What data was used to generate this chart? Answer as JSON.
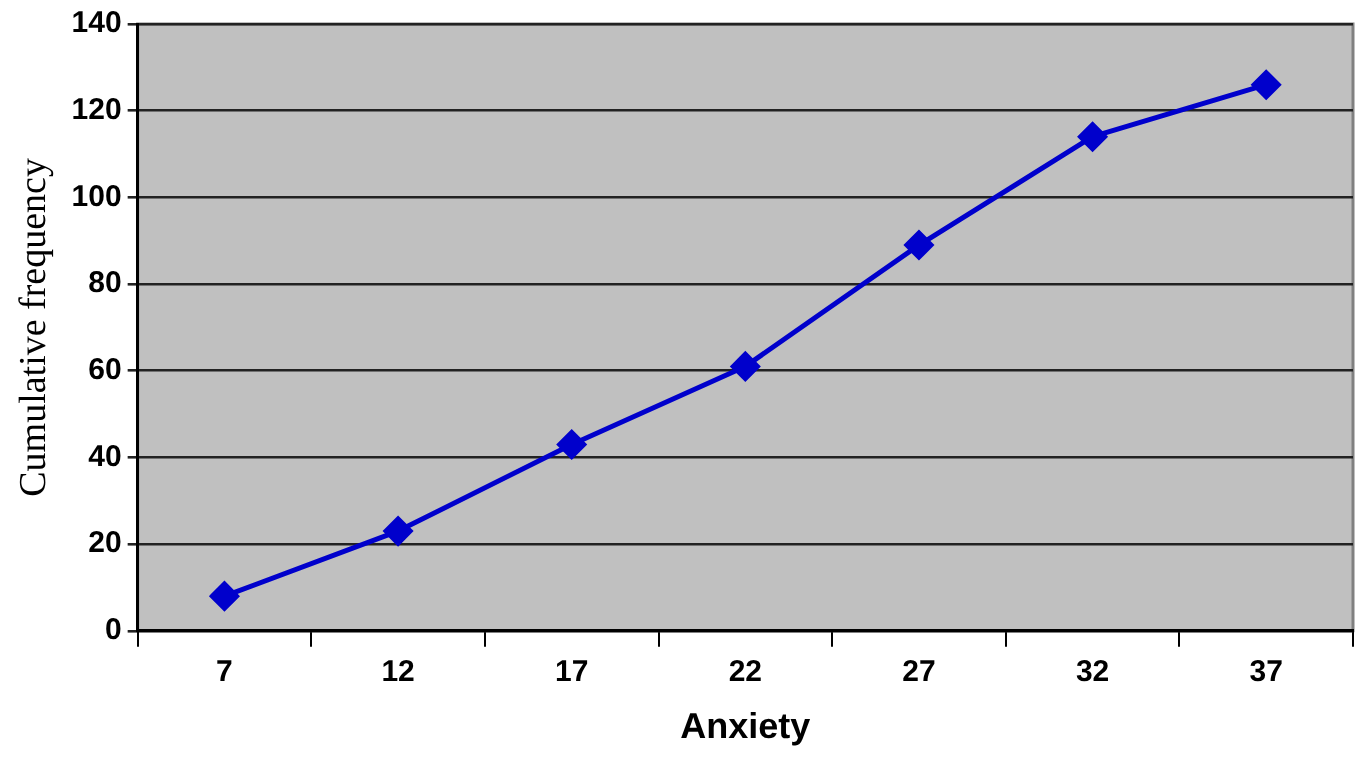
{
  "chart_data": {
    "type": "line",
    "xlabel": "Anxiety",
    "ylabel": "Cumulative frequency",
    "categories": [
      "7",
      "12",
      "17",
      "22",
      "27",
      "32",
      "37"
    ],
    "series": [
      {
        "color": "#0000cc",
        "values": [
          8,
          23,
          43,
          61,
          89,
          114,
          126
        ]
      }
    ],
    "ylim": [
      0,
      140
    ],
    "yticks": [
      0,
      20,
      40,
      60,
      80,
      100,
      120,
      140
    ],
    "grid": "y",
    "legend": false,
    "marker": "diamond",
    "line_style": "solid"
  }
}
